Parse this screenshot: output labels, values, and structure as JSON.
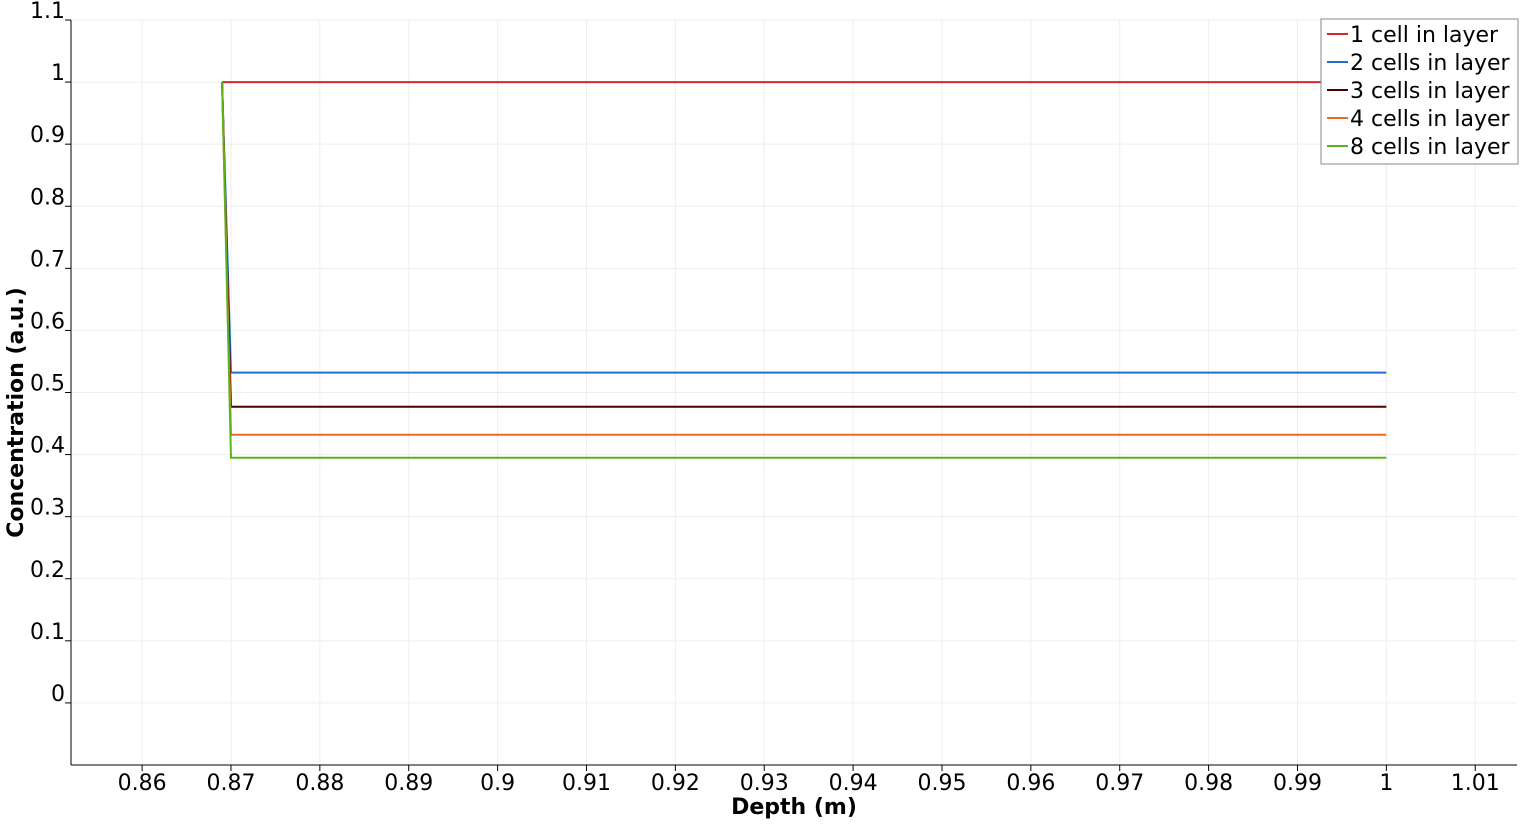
{
  "chart_data": {
    "type": "line",
    "title": "",
    "xlabel": "Depth (m)",
    "ylabel": "Concentration (a.u.)",
    "xlim": [
      0.852,
      1.0147
    ],
    "ylim": [
      -0.1,
      1.1
    ],
    "x_ticks": [
      0.86,
      0.87,
      0.88,
      0.89,
      0.9,
      0.91,
      0.92,
      0.93,
      0.94,
      0.95,
      0.96,
      0.97,
      0.98,
      0.99,
      1.0,
      1.01
    ],
    "x_tick_labels": [
      "0.86",
      "0.87",
      "0.88",
      "0.89",
      "0.9",
      "0.91",
      "0.92",
      "0.93",
      "0.94",
      "0.95",
      "0.96",
      "0.97",
      "0.98",
      "0.99",
      "1",
      "1.01"
    ],
    "y_ticks": [
      0,
      0.1,
      0.2,
      0.3,
      0.4,
      0.5,
      0.6,
      0.7,
      0.8,
      0.9,
      1.0,
      1.1
    ],
    "y_tick_labels": [
      "0",
      "0.1",
      "0.2",
      "0.3",
      "0.4",
      "0.5",
      "0.6",
      "0.7",
      "0.8",
      "0.9",
      "1",
      "1.1"
    ],
    "grid": true,
    "legend_position": "top-right",
    "series": [
      {
        "name": "1 cell in layer",
        "color": "#d62728",
        "x": [
          0.869,
          1.0
        ],
        "y": [
          1.0,
          1.0
        ]
      },
      {
        "name": "2 cells in layer",
        "color": "#1f6fd0",
        "x": [
          0.869,
          0.87,
          1.0
        ],
        "y": [
          1.0,
          0.532,
          0.532
        ]
      },
      {
        "name": "3 cells in layer",
        "color": "#4a0000",
        "x": [
          0.869,
          0.87,
          1.0
        ],
        "y": [
          1.0,
          0.477,
          0.477
        ]
      },
      {
        "name": "4 cells in layer",
        "color": "#f26b1d",
        "x": [
          0.869,
          0.87,
          1.0
        ],
        "y": [
          1.0,
          0.432,
          0.432
        ]
      },
      {
        "name": "8 cells in layer",
        "color": "#5cb21c",
        "x": [
          0.869,
          0.87,
          1.0
        ],
        "y": [
          1.0,
          0.395,
          0.395
        ]
      }
    ]
  }
}
